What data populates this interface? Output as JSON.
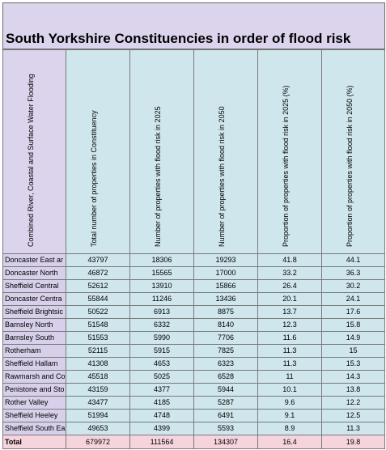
{
  "title": "South Yorkshire Constituencies in order of flood risk",
  "columns": [
    "Combined River, Coastal and Surface Water Flooding",
    "Total number of properties in Constituency",
    "Number of properties with flood risk in 2025",
    "Number of properties with flood risk in 2050",
    "Proportion of properties with flood risk in 2025 (%)",
    "Proportion of properties with flood risk in 2050 (%)"
  ],
  "rows": [
    {
      "name": "Doncaster East ar",
      "total": "43797",
      "n2025": "18306",
      "n2050": "19293",
      "p2025": "41.8",
      "p2050": "44.1"
    },
    {
      "name": "Doncaster North",
      "total": "46872",
      "n2025": "15565",
      "n2050": "17000",
      "p2025": "33.2",
      "p2050": "36.3"
    },
    {
      "name": "Sheffield Central",
      "total": "52612",
      "n2025": "13910",
      "n2050": "15866",
      "p2025": "26.4",
      "p2050": "30.2"
    },
    {
      "name": "Doncaster Centra",
      "total": "55844",
      "n2025": "11246",
      "n2050": "13436",
      "p2025": "20.1",
      "p2050": "24.1"
    },
    {
      "name": "Sheffield Brightsic",
      "total": "50522",
      "n2025": "6913",
      "n2050": "8875",
      "p2025": "13.7",
      "p2050": "17.6"
    },
    {
      "name": "Barnsley North",
      "total": "51548",
      "n2025": "6332",
      "n2050": "8140",
      "p2025": "12.3",
      "p2050": "15.8"
    },
    {
      "name": "Barnsley South",
      "total": "51553",
      "n2025": "5990",
      "n2050": "7706",
      "p2025": "11.6",
      "p2050": "14.9"
    },
    {
      "name": "Rotherham",
      "total": "52115",
      "n2025": "5915",
      "n2050": "7825",
      "p2025": "11.3",
      "p2050": "15"
    },
    {
      "name": "Sheffield Hallam",
      "total": "41308",
      "n2025": "4653",
      "n2050": "6323",
      "p2025": "11.3",
      "p2050": "15.3"
    },
    {
      "name": "Rawmarsh and Co",
      "total": "45518",
      "n2025": "5025",
      "n2050": "6528",
      "p2025": "11",
      "p2050": "14.3"
    },
    {
      "name": "Penistone and Sto",
      "total": "43159",
      "n2025": "4377",
      "n2050": "5944",
      "p2025": "10.1",
      "p2050": "13.8"
    },
    {
      "name": "Rother Valley",
      "total": "43477",
      "n2025": "4185",
      "n2050": "5287",
      "p2025": "9.6",
      "p2050": "12.2"
    },
    {
      "name": "Sheffield Heeley",
      "total": "51994",
      "n2025": "4748",
      "n2050": "6491",
      "p2025": "9.1",
      "p2050": "12.5"
    },
    {
      "name": "Sheffield South Ea",
      "total": "49653",
      "n2025": "4399",
      "n2050": "5593",
      "p2025": "8.9",
      "p2050": "11.3"
    }
  ],
  "total": {
    "name": "Total",
    "total": "679972",
    "n2025": "111564",
    "n2050": "134307",
    "p2025": "16.4",
    "p2050": "19.8"
  },
  "colors": {
    "title_band": "#dcd3ec",
    "name_column": "#d8d0ea",
    "value_cells": "#cfe6ec",
    "total_row": "#f5d4de",
    "grid": "#7a7a7a"
  }
}
